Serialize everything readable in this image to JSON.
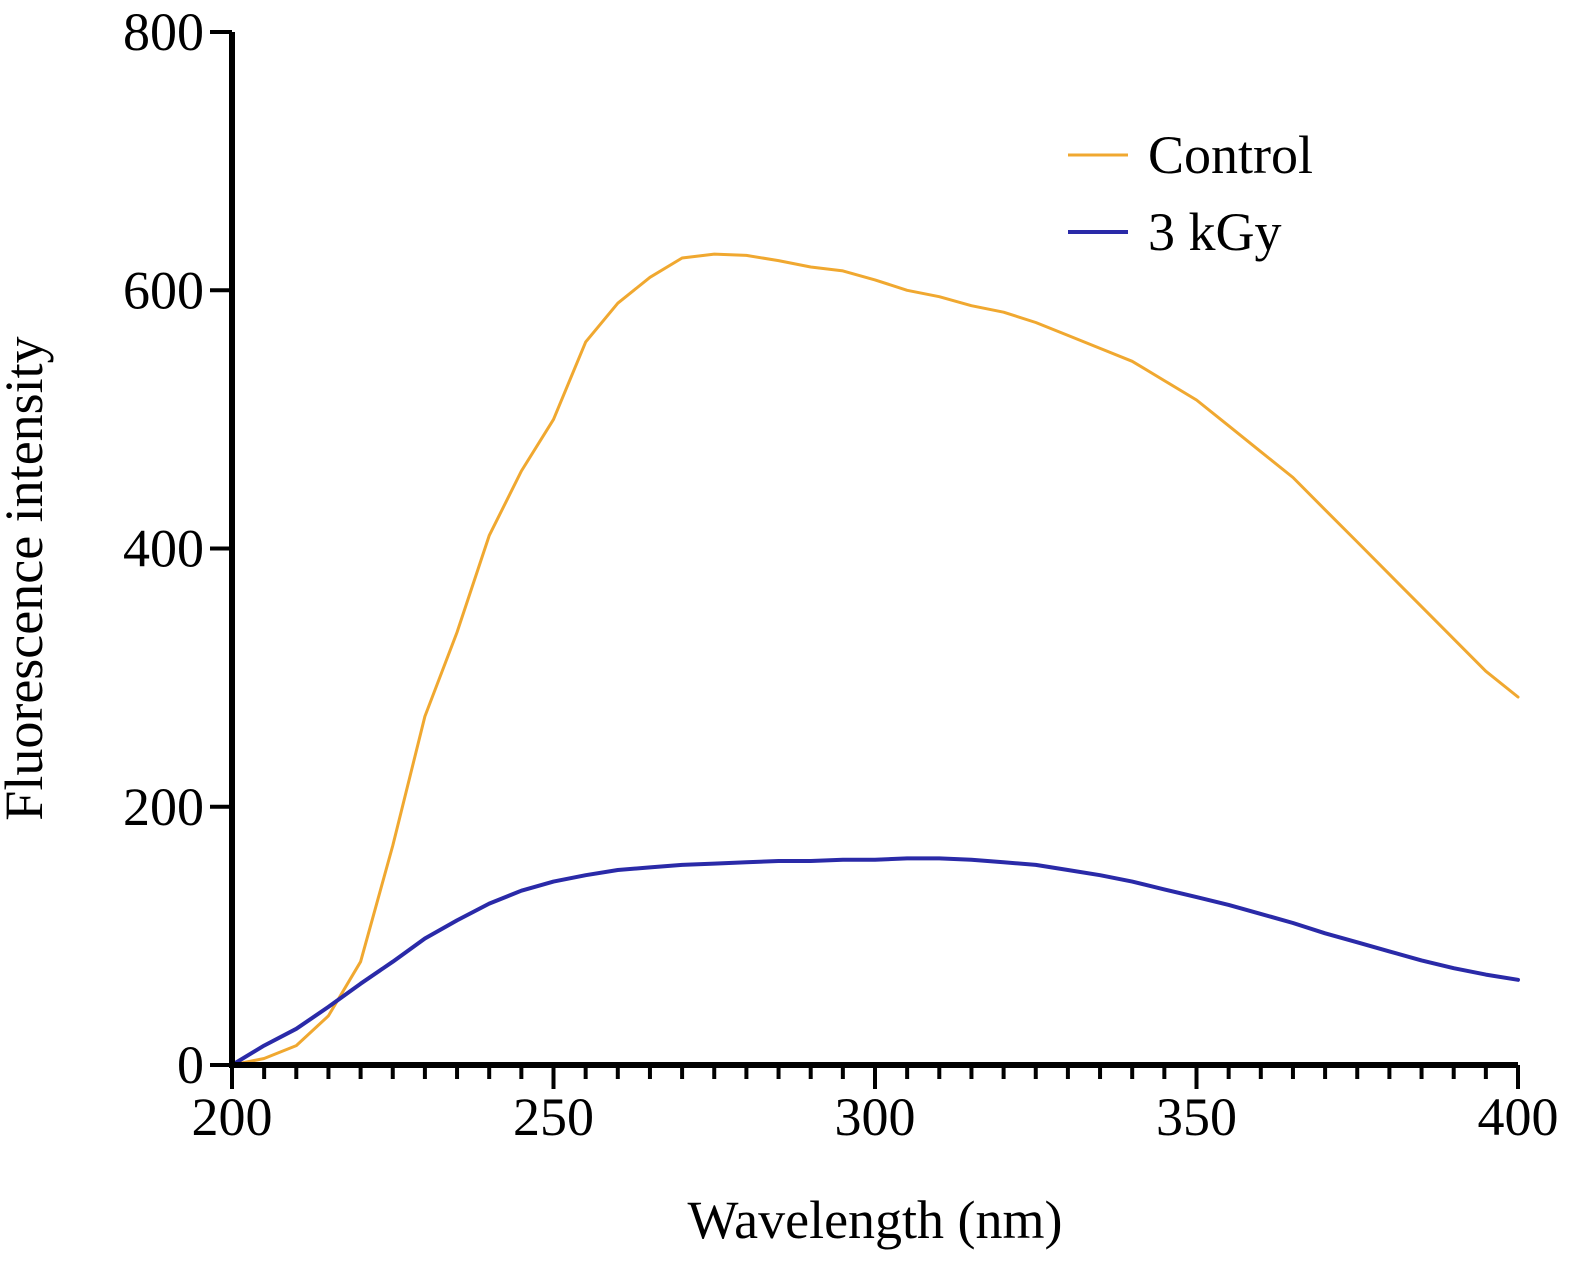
{
  "chart_data": {
    "type": "line",
    "xlabel": "Wavelength (nm)",
    "ylabel": "Fluorescence intensity",
    "xlim": [
      200,
      400
    ],
    "ylim": [
      0,
      800
    ],
    "x_ticks": [
      200,
      250,
      300,
      350,
      400
    ],
    "y_ticks": [
      0,
      200,
      400,
      600,
      800
    ],
    "x_minor_step": 5,
    "grid": false,
    "legend_position": "top-right",
    "series": [
      {
        "name": "Control",
        "color": "#F0A830",
        "x": [
          200,
          205,
          210,
          215,
          220,
          225,
          230,
          235,
          240,
          245,
          250,
          255,
          260,
          265,
          270,
          275,
          280,
          285,
          290,
          295,
          300,
          305,
          310,
          315,
          320,
          325,
          330,
          335,
          340,
          345,
          350,
          355,
          360,
          365,
          370,
          375,
          380,
          385,
          390,
          395,
          400
        ],
        "values": [
          0,
          5,
          15,
          38,
          80,
          170,
          270,
          335,
          410,
          460,
          500,
          560,
          590,
          610,
          625,
          628,
          627,
          623,
          618,
          615,
          608,
          600,
          595,
          588,
          583,
          575,
          565,
          555,
          545,
          530,
          515,
          495,
          475,
          455,
          430,
          405,
          380,
          355,
          330,
          305,
          285
        ]
      },
      {
        "name": "3 kGy",
        "color": "#2A2AA8",
        "x": [
          200,
          205,
          210,
          215,
          220,
          225,
          230,
          235,
          240,
          245,
          250,
          255,
          260,
          265,
          270,
          275,
          280,
          285,
          290,
          295,
          300,
          305,
          310,
          315,
          320,
          325,
          330,
          335,
          340,
          345,
          350,
          355,
          360,
          365,
          370,
          375,
          380,
          385,
          390,
          395,
          400
        ],
        "values": [
          0,
          15,
          28,
          45,
          63,
          80,
          98,
          112,
          125,
          135,
          142,
          147,
          151,
          153,
          155,
          156,
          157,
          158,
          158,
          159,
          159,
          160,
          160,
          159,
          157,
          155,
          151,
          147,
          142,
          136,
          130,
          124,
          117,
          110,
          102,
          95,
          88,
          81,
          75,
          70,
          66
        ]
      }
    ]
  }
}
